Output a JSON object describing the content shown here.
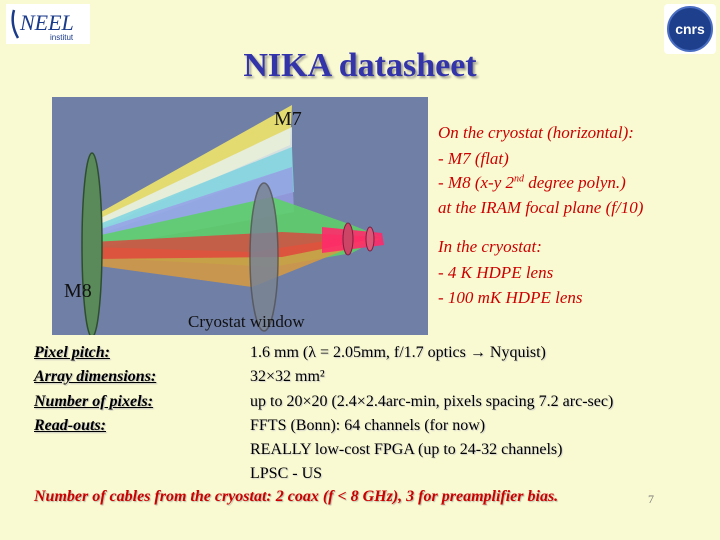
{
  "header": {
    "neel_logo_text": "NEEL",
    "neel_logo_sub": "institut",
    "cnrs_logo_text": "cnrs",
    "title": "NIKA datasheet"
  },
  "diagram": {
    "m7_label": "M7",
    "m8_label": "M8",
    "window_label": "Cryostat window"
  },
  "right_panel": {
    "block1_head": "On the cryostat (horizontal):",
    "block1_line1": "- M7 (flat)",
    "block1_line2_pre": "- M8 (x-y 2",
    "block1_line2_sup": "nd",
    "block1_line2_post": " degree polyn.)",
    "block1_line3": "at the IRAM focal plane (f/10)",
    "block2_head": "In the cryostat:",
    "block2_line1": "- 4 K HDPE lens",
    "block2_line2": "- 100 mK HDPE lens"
  },
  "specs": [
    {
      "label": "Pixel pitch:",
      "value": "1.6 mm (λ = 2.05mm, f/1.7 optics → Nyquist)"
    },
    {
      "label": "Array dimensions:",
      "value": "32×32 mm²"
    },
    {
      "label": "Number of pixels:",
      "value": "up to 20×20 (2.4×2.4arc-min, pixels spacing 7.2 arc-sec)"
    },
    {
      "label": "Read-outs:",
      "value": "FFTS (Bonn): 64 channels (for now)"
    }
  ],
  "extra_lines": [
    "REALLY low-cost FPGA (up to 24-32 channels)",
    "LPSC - US"
  ],
  "footer": {
    "cables": "Number of cables from the cryostat: 2 coax (f < 8 GHz), 3 for preamplifier bias.",
    "page_number": "7"
  },
  "colors": {
    "background": "#fafad2",
    "title": "#3333aa",
    "red_text": "#cc0000",
    "diagram_bg": "#6f7fa6"
  }
}
